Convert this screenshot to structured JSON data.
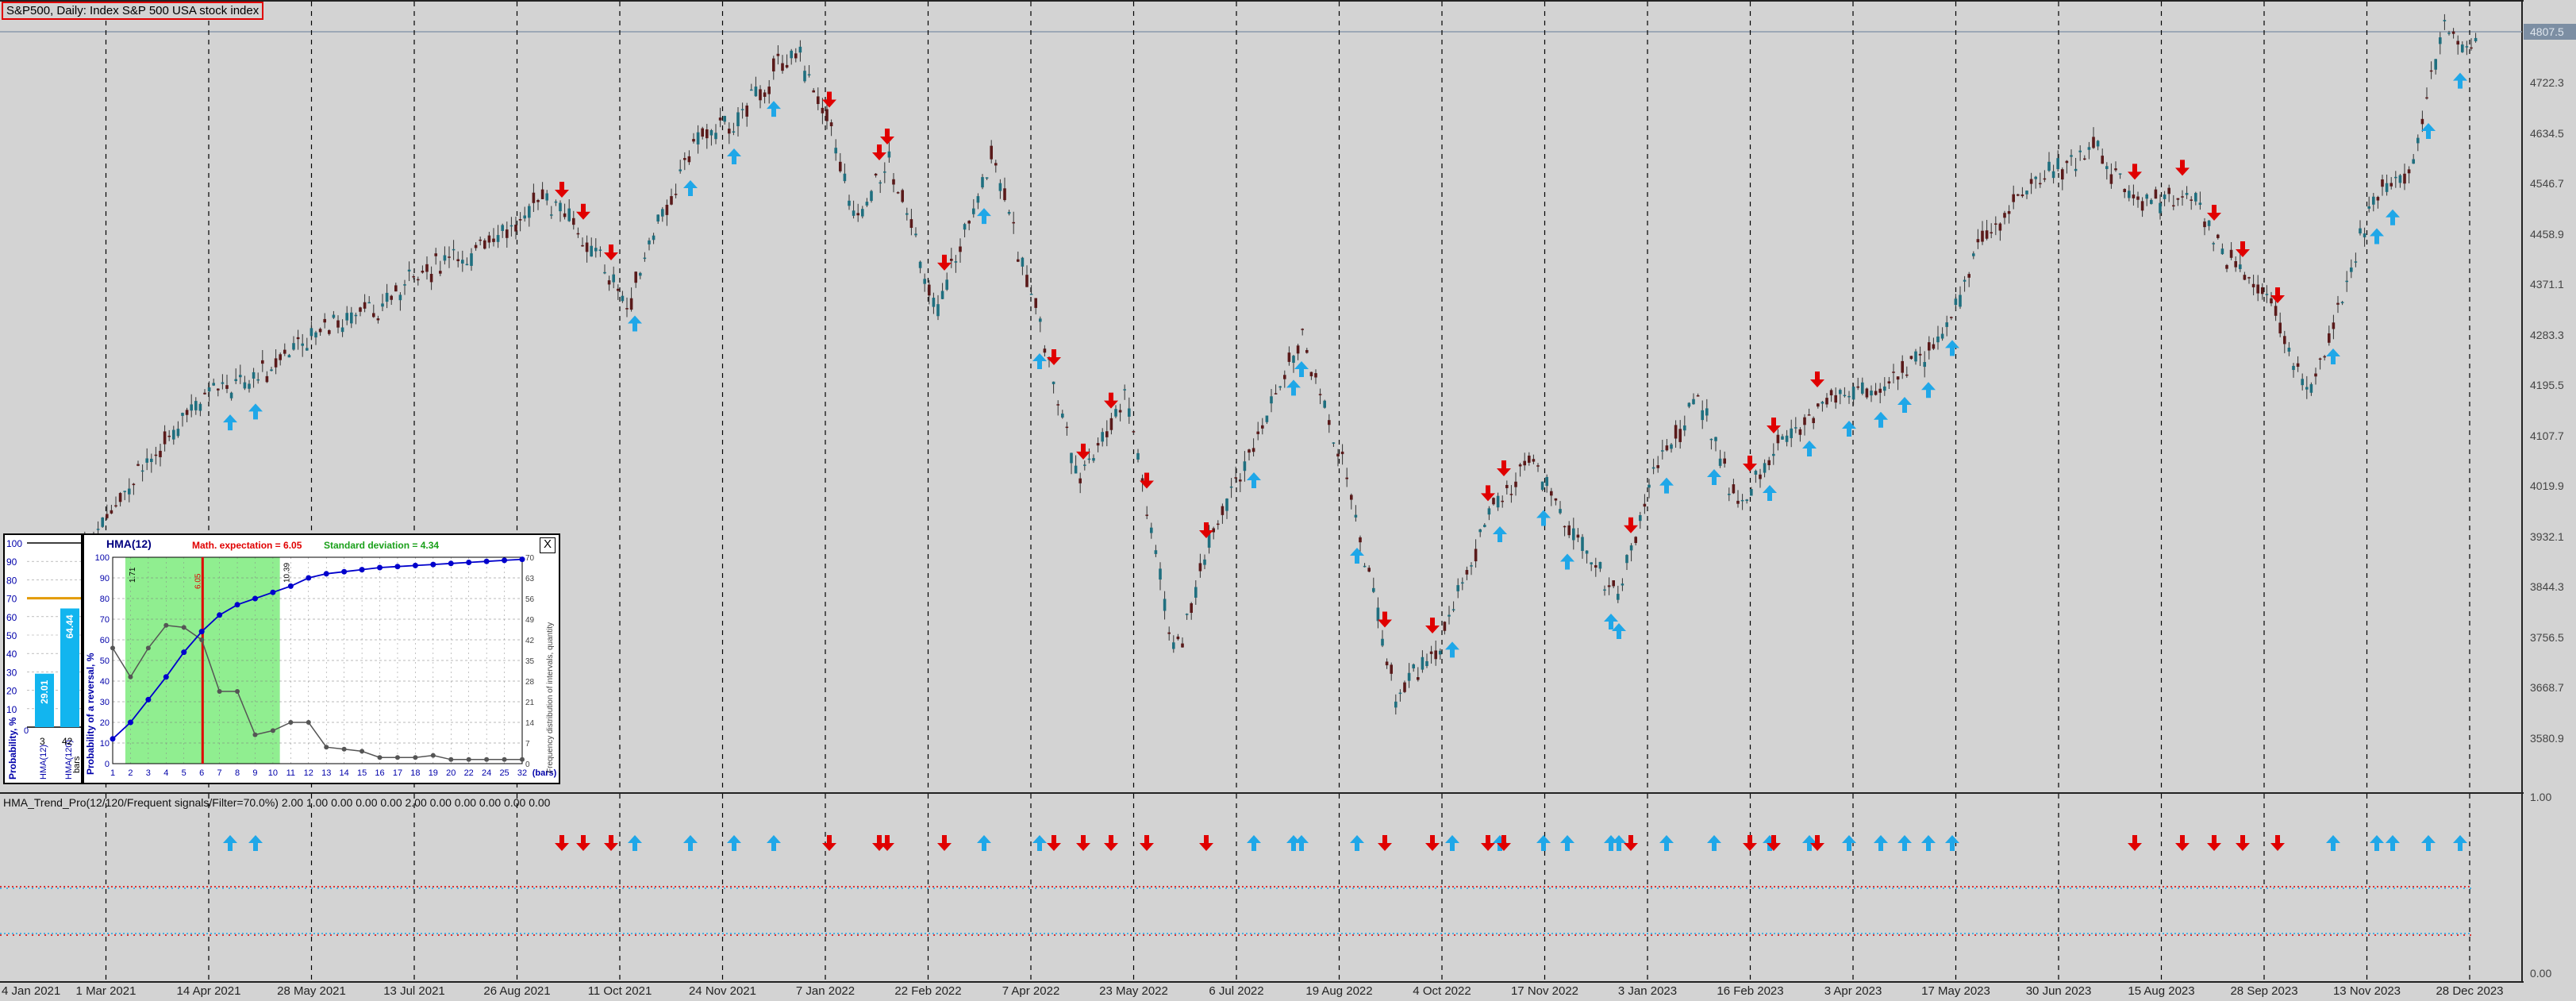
{
  "window": {
    "title": "S&P500, Daily:  Index S&P 500 USA stock index"
  },
  "price_scale": {
    "current": "4807.5",
    "labels": [
      "4722.3",
      "4634.5",
      "4546.7",
      "4458.9",
      "4371.1",
      "4283.3",
      "4195.5",
      "4107.7",
      "4019.9",
      "3932.1",
      "3844.3",
      "3756.5",
      "3668.7",
      "3580.9"
    ]
  },
  "time_axis": [
    "4 Jan 2021",
    "1 Mar 2021",
    "14 Apr 2021",
    "28 May 2021",
    "13 Jul 2021",
    "26 Aug 2021",
    "11 Oct 2021",
    "24 Nov 2021",
    "7 Jan 2022",
    "22 Feb 2022",
    "7 Apr 2022",
    "23 May 2022",
    "6 Jul 2022",
    "19 Aug 2022",
    "4 Oct 2022",
    "17 Nov 2022",
    "3 Jan 2023",
    "16 Feb 2023",
    "3 Apr 2023",
    "17 May 2023",
    "30 Jun 2023",
    "15 Aug 2023",
    "28 Sep 2023",
    "13 Nov 2023",
    "28 Dec 2023"
  ],
  "indicator": {
    "header": "HMA_Trend_Pro(12/120/Frequent signals/Filter=70.0%) 2.00 1.00 0.00 0.00 0.00 2.00 0.00 0.00 0.00 0.00 0.00",
    "scale_max": "1.00",
    "scale_min": "0.00"
  },
  "probability_panel": {
    "ticks": [
      "100",
      "90",
      "80",
      "70",
      "60",
      "50",
      "40",
      "30",
      "20",
      "10"
    ],
    "bar1_value": "29.01",
    "bar2_value": "64.44",
    "axis_title": "Probability, %",
    "bar1_label": "HMA(12)",
    "bar2_label": "HMA(120)",
    "bar1_bars": "3",
    "bar2_bars": "42",
    "bars_word": "bars",
    "zero": "0"
  },
  "hma_panel": {
    "title": "HMA(12)",
    "math_expectation": "Math. expectation = 6.05",
    "std_deviation": "Standard deviation = 4.34",
    "left_axis_title": "Probability of a reversal, %",
    "right_axis_title": "Frequency distribution of intervals, quantity",
    "close_label": "X",
    "left_ticks": [
      "100",
      "90",
      "80",
      "70",
      "60",
      "50",
      "40",
      "30",
      "20",
      "10",
      "0"
    ],
    "right_ticks": [
      "70",
      "63",
      "56",
      "49",
      "42",
      "35",
      "28",
      "21",
      "14",
      "7",
      "0"
    ],
    "x_ticks": [
      "1",
      "2",
      "3",
      "4",
      "5",
      "6",
      "7",
      "8",
      "9",
      "10",
      "11",
      "12",
      "13",
      "14",
      "15",
      "16",
      "17",
      "18",
      "19",
      "20",
      "22",
      "24",
      "25",
      "32"
    ],
    "bars_label": "(bars)",
    "marker_left": "1.71",
    "marker_mid": "6.05",
    "marker_right": "10.39",
    "blue_curve": [
      12,
      20,
      31,
      42,
      54,
      64,
      72,
      77,
      80,
      83,
      86,
      90,
      92,
      93,
      94,
      95,
      95.5,
      96,
      96.5,
      97,
      97.5,
      98,
      98.5,
      99
    ],
    "gray_curve": [
      56,
      42,
      56,
      67,
      66,
      60,
      35,
      35,
      14,
      16,
      20,
      20,
      8,
      7,
      6,
      3,
      3,
      3,
      4,
      2,
      2,
      2,
      2,
      2
    ],
    "colors": {
      "blue": "#0000cc",
      "gray": "#555555",
      "zone": "#90ee90",
      "red": "#e00000",
      "title": "#000080"
    }
  },
  "colors": {
    "background": "#d3d3d3",
    "bull_candle": "#1f6f7f",
    "bear_candle": "#5a1a1a",
    "up_arrow": "#1fa7e8",
    "down_arrow": "#e00000",
    "grid": "#000000"
  }
}
